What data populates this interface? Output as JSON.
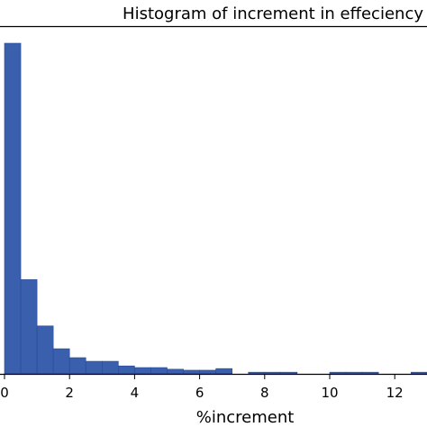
{
  "chart_data": {
    "type": "bar",
    "title": "Histogram of increment in effeciency",
    "xlabel": "%increment",
    "ylabel": "",
    "xlim": [
      0,
      13
    ],
    "ylim": [
      0,
      100
    ],
    "xticks": [
      0,
      2,
      4,
      6,
      8,
      10,
      12
    ],
    "bin_width": 0.5,
    "bins": [
      {
        "x0": 0.0,
        "x1": 0.5,
        "value": 100
      },
      {
        "x0": 0.5,
        "x1": 1.0,
        "value": 28.5
      },
      {
        "x0": 1.0,
        "x1": 1.5,
        "value": 14.5
      },
      {
        "x0": 1.5,
        "x1": 2.0,
        "value": 7.6
      },
      {
        "x0": 2.0,
        "x1": 2.5,
        "value": 4.9
      },
      {
        "x0": 2.5,
        "x1": 3.0,
        "value": 3.8
      },
      {
        "x0": 3.0,
        "x1": 3.5,
        "value": 3.8
      },
      {
        "x0": 3.5,
        "x1": 4.0,
        "value": 2.4
      },
      {
        "x0": 4.0,
        "x1": 4.5,
        "value": 1.9
      },
      {
        "x0": 4.5,
        "x1": 5.0,
        "value": 1.9
      },
      {
        "x0": 5.0,
        "x1": 5.5,
        "value": 1.4
      },
      {
        "x0": 5.5,
        "x1": 6.0,
        "value": 1.1
      },
      {
        "x0": 6.0,
        "x1": 6.5,
        "value": 1.1
      },
      {
        "x0": 6.5,
        "x1": 7.0,
        "value": 1.6
      },
      {
        "x0": 7.0,
        "x1": 7.5,
        "value": 0.0
      },
      {
        "x0": 7.5,
        "x1": 8.0,
        "value": 0.5
      },
      {
        "x0": 8.0,
        "x1": 8.5,
        "value": 0.5
      },
      {
        "x0": 8.5,
        "x1": 9.0,
        "value": 0.5
      },
      {
        "x0": 9.0,
        "x1": 9.5,
        "value": 0.0
      },
      {
        "x0": 9.5,
        "x1": 10.0,
        "value": 0.0
      },
      {
        "x0": 10.0,
        "x1": 10.5,
        "value": 0.5
      },
      {
        "x0": 10.5,
        "x1": 11.0,
        "value": 0.5
      },
      {
        "x0": 11.0,
        "x1": 11.5,
        "value": 0.5
      },
      {
        "x0": 11.5,
        "x1": 12.0,
        "value": 0.0
      },
      {
        "x0": 12.0,
        "x1": 12.5,
        "value": 0.0
      },
      {
        "x0": 12.5,
        "x1": 13.0,
        "value": 0.5
      }
    ],
    "grid": false,
    "bar_color": "#3a5fad",
    "edge_color": "#2a4a93"
  }
}
